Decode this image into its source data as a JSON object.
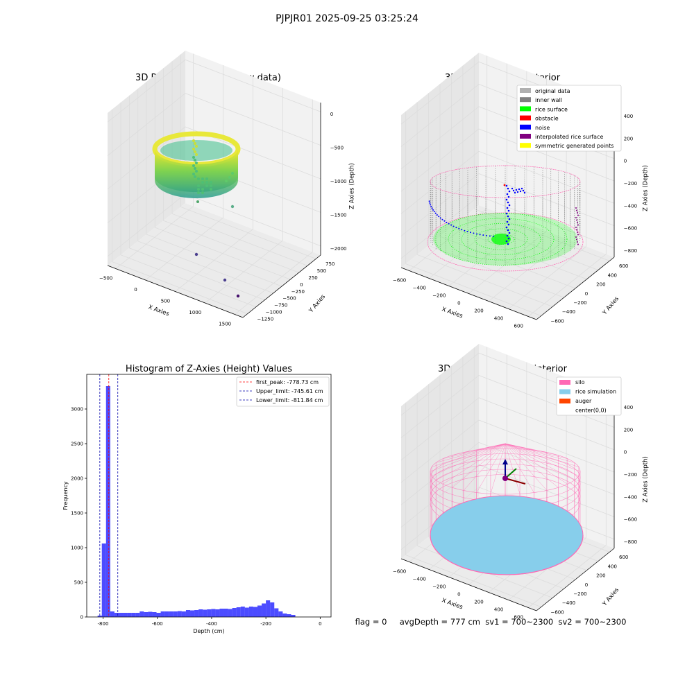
{
  "figure": {
    "suptitle": "PJPJR01 2025-09-25 03:25:24",
    "footer": "flag = 0     avgDepth = 777 cm  sv1 = 700~2300  sv2 = 700~2300"
  },
  "colors": {
    "pane": "#f2f2f2",
    "pane_dark": "#e6e6e6",
    "grid": "#dcdcdc",
    "silo": "#ff69b4",
    "rice": "#87ceeb",
    "auger": "#ff4500",
    "hist": "#0000ff",
    "peak": "#ff0000",
    "limit": "#0000aa",
    "original": "#b0b0b0",
    "inner_wall": "#808080",
    "rice_surface": "#00ff00",
    "obstacle": "#ff0000",
    "noise": "#0000ff",
    "interp": "#800080",
    "symmetric": "#ffff00"
  },
  "chart_data": [
    {
      "id": "raw",
      "type": "scatter",
      "title": "3D Plot of Silo Interior(row data)",
      "xlabel": "X Axies",
      "ylabel": "Y Axies",
      "zlabel": "Z Axies (Depth)",
      "xticks": [
        "−500",
        "0",
        "500",
        "1000",
        "1500"
      ],
      "yticks": [
        "−1250",
        "−1000",
        "−750",
        "−500",
        "−250",
        "0",
        "250",
        "500",
        "750"
      ],
      "zticks": [
        "−2000",
        "−1500",
        "−1000",
        "−500",
        "0"
      ],
      "ring": {
        "center_x": 0,
        "center_y": 0,
        "radius": 650,
        "z_top": -50,
        "z_bottom": -1150
      },
      "outliers": [
        {
          "x": 1100,
          "y": 0,
          "z": -1500
        },
        {
          "x": 300,
          "y": -700,
          "z": -2100
        },
        {
          "x": 1350,
          "y": -1000,
          "z": -2000
        },
        {
          "x": 1700,
          "y": -1200,
          "z": -2050
        }
      ]
    },
    {
      "id": "classify",
      "type": "scatter",
      "title": "3D classify of Silo Interior",
      "xlabel": "X Axies",
      "ylabel": "Y Axies",
      "zlabel": "Z Axies (Depth)",
      "xticks": [
        "−600",
        "−400",
        "−200",
        "0",
        "200",
        "400",
        "600"
      ],
      "yticks": [
        "−600",
        "−400",
        "−200",
        "0",
        "200",
        "400",
        "600"
      ],
      "zticks": [
        "−800",
        "−600",
        "−400",
        "−200",
        "0",
        "200",
        "400"
      ],
      "legend": [
        "original data",
        "inner wall",
        "rice surface",
        "obstacle",
        "noise",
        "interpolated rice surface",
        "symmetric generated points"
      ],
      "legend_position": "top-right",
      "radius": 650,
      "wall_top": 150,
      "surface_depth": -780
    },
    {
      "id": "histogram",
      "type": "bar",
      "title": "Histogram of Z-Axies (Height) Values",
      "xlabel": "Depth (cm)",
      "ylabel": "Frequency",
      "xlim": [
        -860,
        40
      ],
      "ylim": [
        0,
        3500
      ],
      "xticks": [
        -800,
        -600,
        -400,
        -200,
        0
      ],
      "yticks": [
        0,
        500,
        1000,
        1500,
        2000,
        2500,
        3000
      ],
      "bin_start": -820,
      "bin_width": 15.5,
      "counts": [
        20,
        1060,
        3330,
        80,
        60,
        60,
        60,
        60,
        60,
        60,
        80,
        70,
        75,
        70,
        60,
        80,
        80,
        80,
        80,
        85,
        80,
        100,
        95,
        100,
        110,
        105,
        110,
        115,
        110,
        120,
        120,
        115,
        130,
        140,
        150,
        135,
        150,
        145,
        165,
        195,
        240,
        210,
        125,
        80,
        50,
        40,
        30
      ],
      "lines": [
        {
          "label": "first_peak: -778.73 cm",
          "value": -778.73,
          "style": "peak"
        },
        {
          "label": "Upper_limit: -745.61 cm",
          "value": -745.61,
          "style": "limit"
        },
        {
          "label": "Lower_limit: -811.84 cm",
          "value": -811.84,
          "style": "limit"
        }
      ],
      "legend_position": "top-right"
    },
    {
      "id": "simulation",
      "type": "area",
      "title": "3D simulation of Silo Interior",
      "xlabel": "X Axies",
      "ylabel": "Y Axies",
      "zlabel": "Z Axies (Depth)",
      "xticks": [
        "−600",
        "−400",
        "−200",
        "0",
        "200",
        "400",
        "600"
      ],
      "yticks": [
        "−600",
        "−400",
        "−200",
        "0",
        "200",
        "400",
        "600"
      ],
      "zticks": [
        "−800",
        "−600",
        "−400",
        "−200",
        "0",
        "200",
        "400"
      ],
      "legend": [
        "silo",
        "rice simulation",
        "auger",
        "center(0,0)"
      ],
      "legend_position": "top-right",
      "radius": 650,
      "wall_top": 150,
      "rice_depth": -777
    }
  ]
}
